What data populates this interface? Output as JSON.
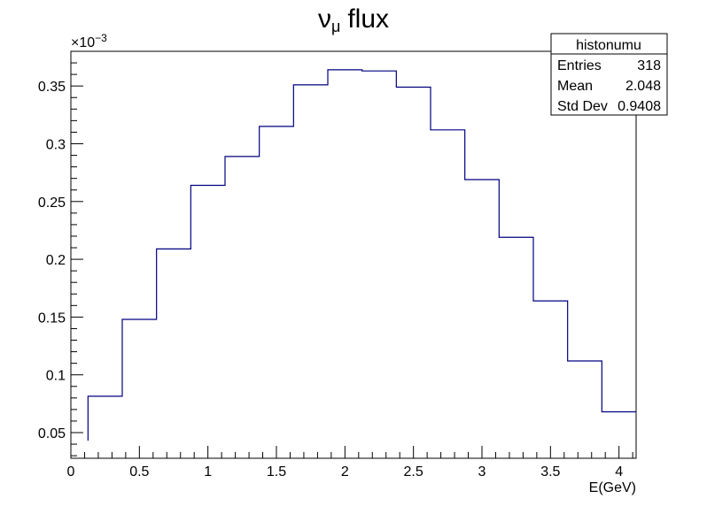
{
  "chart_data": {
    "type": "histogram",
    "title": {
      "symbol": "ν",
      "subscript": "μ",
      "text": "flux"
    },
    "xlabel": "E(GeV)",
    "ylabel": "",
    "y_exponent_label": "×10",
    "y_exponent_power": "−3",
    "xlim": [
      0,
      4.125
    ],
    "ylim": [
      0.0278,
      0.38
    ],
    "x_ticks": [
      0,
      0.5,
      1,
      1.5,
      2,
      2.5,
      3,
      3.5,
      4
    ],
    "x_tick_labels": [
      "0",
      "0.5",
      "1",
      "1.5",
      "2",
      "2.5",
      "3",
      "3.5",
      "4"
    ],
    "y_ticks": [
      0.05,
      0.1,
      0.15,
      0.2,
      0.25,
      0.3,
      0.35
    ],
    "y_tick_labels": [
      "0.05",
      "0.1",
      "0.15",
      "0.2",
      "0.25",
      "0.3",
      "0.35"
    ],
    "bin_edges": [
      0.125,
      0.375,
      0.625,
      0.875,
      1.125,
      1.375,
      1.625,
      1.875,
      2.125,
      2.375,
      2.625,
      2.875,
      3.125,
      3.375,
      3.625,
      3.875,
      4.125
    ],
    "bins": [
      0.0815,
      0.148,
      0.209,
      0.264,
      0.289,
      0.315,
      0.351,
      0.364,
      0.363,
      0.349,
      0.312,
      0.269,
      0.219,
      0.164,
      0.112,
      0.068
    ],
    "left_edge_value": 0.043,
    "line_color": "#000080",
    "grid": false,
    "stats_box": {
      "title": "histonumu",
      "rows": [
        {
          "label": "Entries",
          "value": "318"
        },
        {
          "label": "Mean",
          "value": "2.048"
        },
        {
          "label": "Std Dev",
          "value": "0.9408"
        }
      ]
    }
  }
}
